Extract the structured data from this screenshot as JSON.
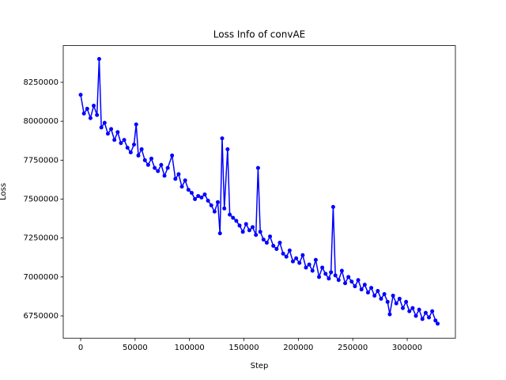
{
  "chart_data": {
    "type": "line",
    "title": "Loss Info of convAE",
    "xlabel": "Step",
    "ylabel": "Loss",
    "xlim": [
      -16000,
      344300
    ],
    "ylim": [
      6606700,
      8485800
    ],
    "xticks": [
      0,
      50000,
      100000,
      150000,
      200000,
      250000,
      300000
    ],
    "yticks": [
      6750000,
      7000000,
      7250000,
      7500000,
      7750000,
      8000000,
      8250000
    ],
    "grid": false,
    "marker": true,
    "x": [
      0,
      3000,
      6000,
      9000,
      12000,
      15000,
      17000,
      19000,
      22000,
      25000,
      28000,
      31000,
      34000,
      37000,
      40000,
      43000,
      46000,
      49000,
      51000,
      53000,
      56000,
      59000,
      62000,
      65000,
      68000,
      71000,
      74000,
      77000,
      80000,
      84000,
      87000,
      90000,
      93000,
      96000,
      99000,
      102000,
      105000,
      108000,
      111000,
      114000,
      117000,
      120000,
      123000,
      126000,
      128000,
      130000,
      132000,
      135000,
      137000,
      140000,
      143000,
      146000,
      149000,
      152000,
      155000,
      158000,
      161000,
      163000,
      165000,
      168000,
      171000,
      174000,
      177000,
      180000,
      183000,
      186000,
      189000,
      192000,
      195000,
      198000,
      201000,
      204000,
      207000,
      210000,
      213000,
      216000,
      219000,
      222000,
      225000,
      228000,
      230000,
      232000,
      234000,
      237000,
      240000,
      243000,
      246000,
      249000,
      252000,
      255000,
      258000,
      261000,
      264000,
      267000,
      270000,
      273000,
      276000,
      279000,
      282000,
      284000,
      287000,
      290000,
      293000,
      296000,
      299000,
      302000,
      305000,
      308000,
      311000,
      314000,
      317000,
      320000,
      323000,
      326000,
      328000
    ],
    "series": [
      {
        "color": "#0000ff",
        "values": [
          8170000,
          8050000,
          8080000,
          8020000,
          8100000,
          8040000,
          8400000,
          7960000,
          7990000,
          7920000,
          7950000,
          7880000,
          7930000,
          7860000,
          7880000,
          7830000,
          7800000,
          7850000,
          7980000,
          7780000,
          7820000,
          7750000,
          7720000,
          7760000,
          7700000,
          7680000,
          7720000,
          7650000,
          7700000,
          7780000,
          7630000,
          7660000,
          7580000,
          7620000,
          7560000,
          7540000,
          7500000,
          7520000,
          7510000,
          7530000,
          7490000,
          7460000,
          7420000,
          7480000,
          7280000,
          7890000,
          7440000,
          7820000,
          7400000,
          7380000,
          7360000,
          7330000,
          7290000,
          7340000,
          7300000,
          7320000,
          7270000,
          7700000,
          7290000,
          7240000,
          7220000,
          7260000,
          7200000,
          7180000,
          7220000,
          7150000,
          7130000,
          7170000,
          7100000,
          7120000,
          7090000,
          7140000,
          7060000,
          7080000,
          7040000,
          7110000,
          7000000,
          7060000,
          7020000,
          6990000,
          7030000,
          7450000,
          7010000,
          6980000,
          7040000,
          6960000,
          7000000,
          6970000,
          6940000,
          6980000,
          6920000,
          6950000,
          6900000,
          6930000,
          6880000,
          6910000,
          6860000,
          6890000,
          6840000,
          6760000,
          6880000,
          6830000,
          6860000,
          6800000,
          6840000,
          6780000,
          6800000,
          6750000,
          6790000,
          6730000,
          6770000,
          6740000,
          6780000,
          6720000,
          6700000
        ]
      }
    ]
  }
}
